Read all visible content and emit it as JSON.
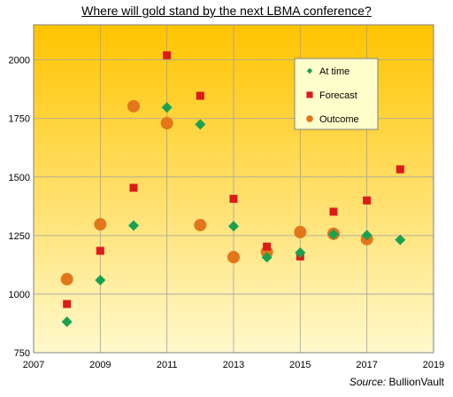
{
  "chart_data": {
    "type": "scatter",
    "title": "Where will gold stand by the next LBMA conference?",
    "source_prefix": "Source:",
    "source_name": "BullionVault",
    "xlim": [
      2007,
      2019
    ],
    "ylim": [
      750,
      2150
    ],
    "x_ticks": [
      2007,
      2009,
      2011,
      2013,
      2015,
      2017,
      2019
    ],
    "x_tick_labels": [
      "2007",
      "2009",
      "2011",
      "2013",
      "2015",
      "2017",
      "2019"
    ],
    "y_ticks": [
      750,
      1000,
      1250,
      1500,
      1750,
      2000
    ],
    "y_tick_labels": [
      "750",
      "1000",
      "1250",
      "1500",
      "1750",
      "2000"
    ],
    "grid": true,
    "legend_position": "top-right",
    "background_gradient": [
      "#ffc400",
      "#fff9cc"
    ],
    "series": [
      {
        "name": "At time",
        "marker": "diamond",
        "color": "#1aa152",
        "x": [
          2008,
          2009,
          2010,
          2011,
          2012,
          2013,
          2014,
          2015,
          2016,
          2017,
          2018
        ],
        "y": [
          882,
          1060,
          1293,
          1797,
          1725,
          1290,
          1157,
          1177,
          1255,
          1252,
          1232
        ]
      },
      {
        "name": "Forecast",
        "marker": "square",
        "color": "#dd1b1b",
        "x": [
          2008,
          2009,
          2010,
          2011,
          2012,
          2013,
          2014,
          2015,
          2016,
          2017,
          2018
        ],
        "y": [
          958,
          1185,
          1454,
          2020,
          1847,
          1407,
          1203,
          1161,
          1352,
          1400,
          1533
        ]
      },
      {
        "name": "Outcome",
        "marker": "circle",
        "color": "#e3761a",
        "x": [
          2008,
          2009,
          2010,
          2011,
          2012,
          2013,
          2014,
          2015,
          2016,
          2017
        ],
        "y": [
          1064,
          1298,
          1802,
          1730,
          1295,
          1158,
          1180,
          1265,
          1258,
          1235
        ]
      }
    ]
  }
}
